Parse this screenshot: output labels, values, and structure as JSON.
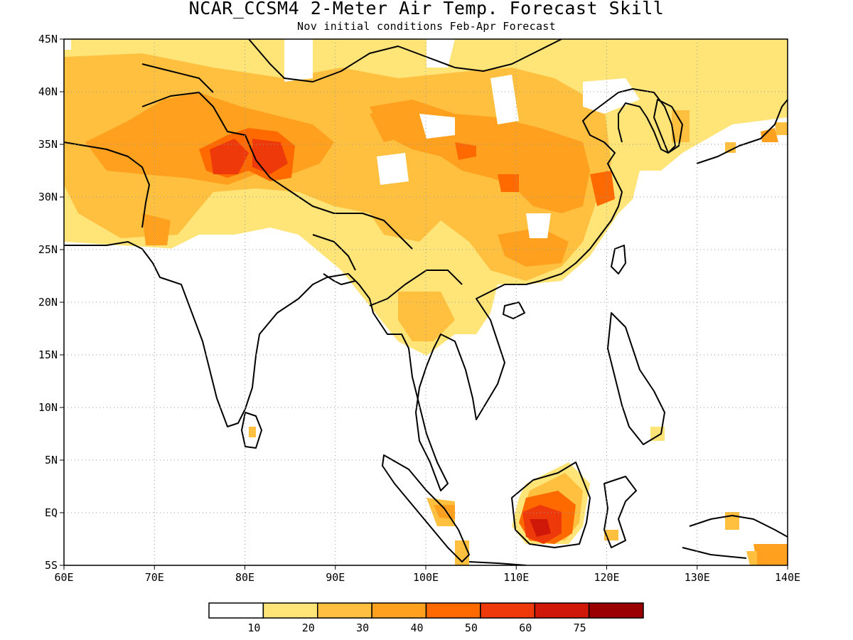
{
  "title": "NCAR_CCSM4 2-Meter Air Temp. Forecast Skill",
  "subtitle": "Nov initial conditions  Feb-Apr Forecast",
  "map": {
    "lon_range": [
      60,
      140
    ],
    "lat_range": [
      -5,
      45
    ],
    "lon_ticks": [
      {
        "value": 60,
        "label": "60E"
      },
      {
        "value": 70,
        "label": "70E"
      },
      {
        "value": 80,
        "label": "80E"
      },
      {
        "value": 90,
        "label": "90E"
      },
      {
        "value": 100,
        "label": "100E"
      },
      {
        "value": 110,
        "label": "110E"
      },
      {
        "value": 120,
        "label": "120E"
      },
      {
        "value": 130,
        "label": "130E"
      },
      {
        "value": 140,
        "label": "140E"
      }
    ],
    "lat_ticks": [
      {
        "value": 45,
        "label": "45N"
      },
      {
        "value": 40,
        "label": "40N"
      },
      {
        "value": 35,
        "label": "35N"
      },
      {
        "value": 30,
        "label": "30N"
      },
      {
        "value": 25,
        "label": "25N"
      },
      {
        "value": 20,
        "label": "20N"
      },
      {
        "value": 15,
        "label": "15N"
      },
      {
        "value": 10,
        "label": "10N"
      },
      {
        "value": 5,
        "label": "5N"
      },
      {
        "value": 0,
        "label": "EQ"
      },
      {
        "value": -5,
        "label": "5S"
      }
    ],
    "grid": "dotted"
  },
  "colorbar": {
    "colors": [
      "#ffffff",
      "#ffe478",
      "#ffc040",
      "#ffa01e",
      "#ff6a00",
      "#ee3a0a",
      "#d01808",
      "#9a0000"
    ],
    "labels": [
      "10",
      "20",
      "30",
      "40",
      "50",
      "60",
      "75"
    ]
  }
}
